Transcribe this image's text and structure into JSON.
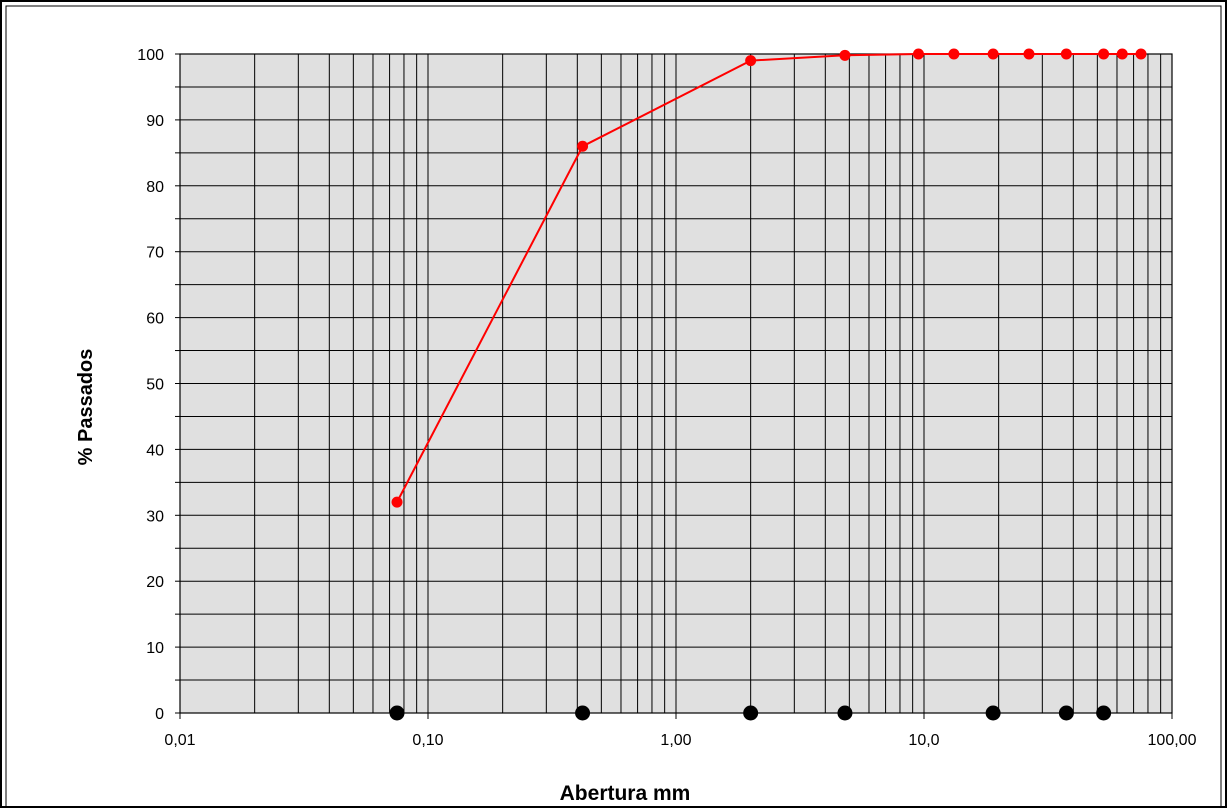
{
  "chart_data": {
    "type": "scatter",
    "xlabel": "Abertura mm",
    "ylabel": "% Passados",
    "x_scale": "log",
    "xlim": [
      0.01,
      100
    ],
    "ylim": [
      0,
      100
    ],
    "x_ticks": [
      0.01,
      0.1,
      1,
      10,
      100
    ],
    "x_tick_labels": [
      "0,01",
      "0,10",
      "1,00",
      "10,0",
      "100,00"
    ],
    "y_ticks": [
      0,
      10,
      20,
      30,
      40,
      50,
      60,
      70,
      80,
      90,
      100
    ],
    "y_tick_labels": [
      "0",
      "10",
      "20",
      "30",
      "40",
      "50",
      "60",
      "70",
      "80",
      "90",
      "100"
    ],
    "grid": true,
    "legend": "none",
    "plot_background": "#e0e0e0",
    "series": [
      {
        "style": "line-markers",
        "color": "#ff0000",
        "x": [
          0.075,
          0.42,
          2.0,
          4.8,
          9.5,
          13.2,
          19.0,
          26.5,
          37.5,
          53.0,
          63.0,
          75.0
        ],
        "y": [
          32,
          86,
          99,
          99.8,
          100,
          100,
          100,
          100,
          100,
          100,
          100,
          100
        ]
      },
      {
        "style": "markers",
        "color": "#000000",
        "x": [
          0.075,
          0.42,
          2.0,
          4.8,
          19.0,
          37.5,
          53.0
        ],
        "y": [
          0,
          0,
          0,
          0,
          0,
          0,
          0
        ]
      }
    ]
  }
}
